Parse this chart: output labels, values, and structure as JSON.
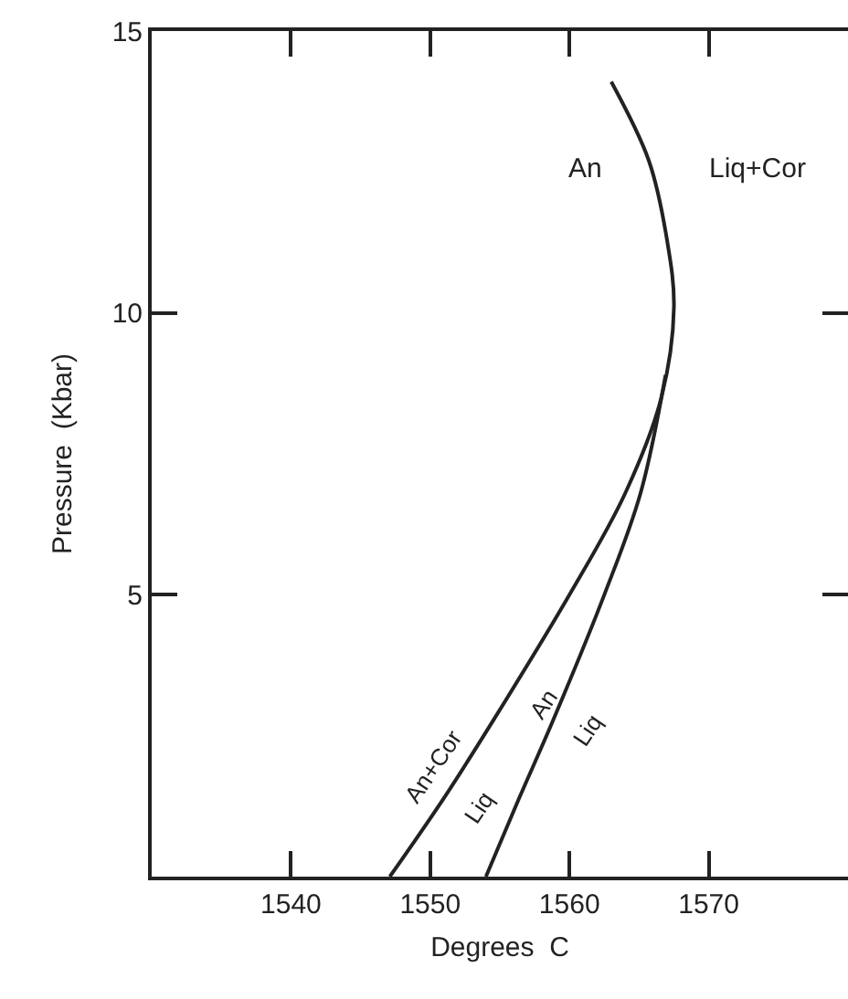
{
  "chart_data": {
    "type": "line",
    "xlabel": "Degrees  C",
    "ylabel": "Pressure  (Kbar)",
    "xlim": [
      1530,
      1580
    ],
    "xticks": [
      1540,
      1550,
      1560,
      1570
    ],
    "ylim": [
      0,
      15
    ],
    "yticks": [
      {
        "value": 0,
        "label": null
      },
      5,
      10,
      15
    ],
    "grid": false,
    "marker": "none",
    "line_style": "solid",
    "series": [
      {
        "color": "#222222",
        "x": [
          1547.1,
          1551.0,
          1554.6,
          1560.0,
          1564.0,
          1566.6,
          1567.5,
          1567.0,
          1565.7,
          1563.0
        ],
        "values": [
          0,
          1.4,
          2.8,
          5.0,
          6.8,
          8.5,
          10.1,
          11.3,
          12.7,
          14.1
        ]
      },
      {
        "color": "#222222",
        "x": [
          1554.0,
          1556.4,
          1558.7,
          1562.5,
          1565.1,
          1566.9
        ],
        "values": [
          0,
          1.4,
          2.7,
          5.0,
          6.8,
          8.9
        ]
      }
    ],
    "annotations": [
      "An",
      "Liq+Cor",
      "An+Cor",
      "Liq",
      "An",
      "Liq"
    ]
  }
}
